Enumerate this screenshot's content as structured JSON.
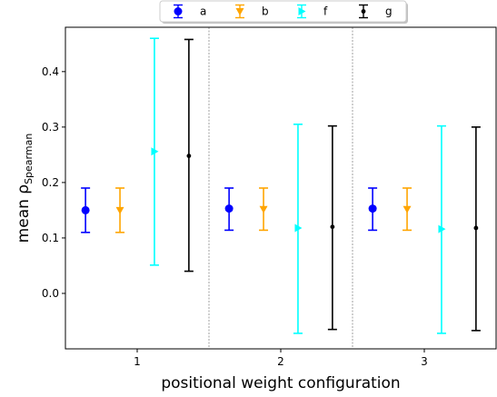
{
  "chart_data": {
    "type": "errorbar",
    "xlabel": "positional weight configuration",
    "ylabel_main": "mean ρ",
    "ylabel_sub": "Spearman",
    "categories": [
      "1",
      "2",
      "3"
    ],
    "x_ticks": [
      1,
      2,
      3
    ],
    "xlim": [
      0.5,
      3.5
    ],
    "ylim": [
      -0.1,
      0.48
    ],
    "y_ticks": [
      0.0,
      0.1,
      0.2,
      0.3,
      0.4
    ],
    "y_tick_labels": [
      "0.0",
      "0.1",
      "0.2",
      "0.3",
      "0.4"
    ],
    "vertical_separators": [
      1.5,
      2.5
    ],
    "grid": false,
    "legend_position": "top-center",
    "series": [
      {
        "name": "a",
        "color": "#0000ff",
        "marker": "circle",
        "offset": -0.36,
        "values": [
          0.15,
          0.153,
          0.153
        ],
        "lower": [
          0.11,
          0.114,
          0.114
        ],
        "upper": [
          0.19,
          0.19,
          0.19
        ]
      },
      {
        "name": "b",
        "color": "#ffa500",
        "marker": "triangle-down",
        "offset": -0.12,
        "values": [
          0.15,
          0.152,
          0.152
        ],
        "lower": [
          0.11,
          0.114,
          0.114
        ],
        "upper": [
          0.19,
          0.19,
          0.19
        ]
      },
      {
        "name": "f",
        "color": "#00ffff",
        "marker": "triangle-right",
        "offset": 0.12,
        "values": [
          0.256,
          0.118,
          0.116
        ],
        "lower": [
          0.051,
          -0.072,
          -0.072
        ],
        "upper": [
          0.46,
          0.305,
          0.302
        ]
      },
      {
        "name": "g",
        "color": "#000000",
        "marker": "point",
        "offset": 0.36,
        "values": [
          0.248,
          0.12,
          0.118
        ],
        "lower": [
          0.04,
          -0.065,
          -0.067
        ],
        "upper": [
          0.458,
          0.302,
          0.3
        ]
      }
    ]
  }
}
